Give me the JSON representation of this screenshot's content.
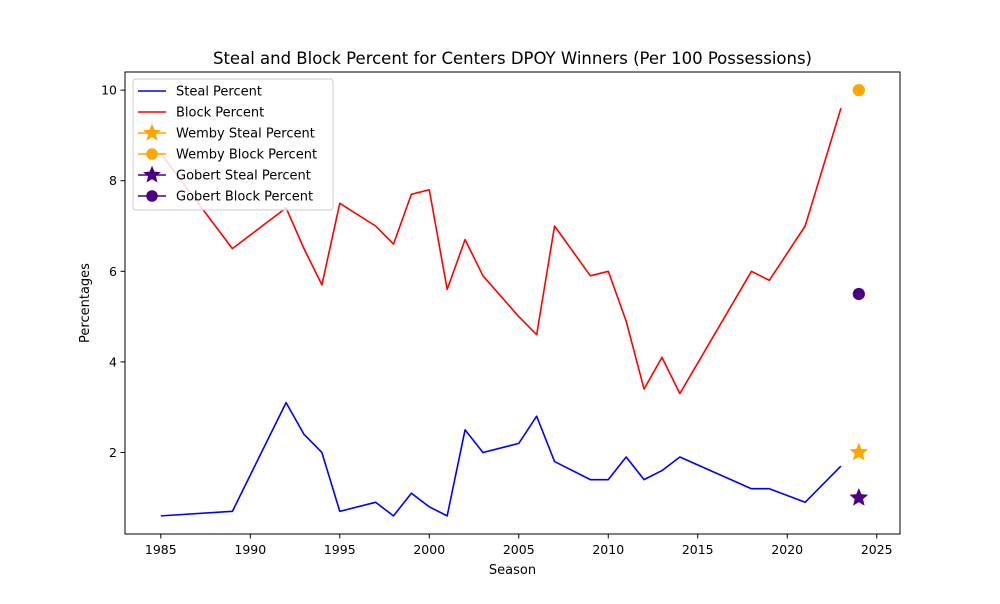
{
  "chart_data": {
    "type": "line",
    "title": "Steal and Block Percent for Centers DPOY Winners (Per 100 Possessions)",
    "xlabel": "Season",
    "ylabel": "Percentages",
    "xlim": [
      1983,
      2026.3
    ],
    "ylim": [
      0.2,
      10.4
    ],
    "xticks": [
      1985,
      1990,
      1995,
      2000,
      2005,
      2010,
      2015,
      2020,
      2025
    ],
    "yticks": [
      2,
      4,
      6,
      8,
      10
    ],
    "legend_position": "upper-left",
    "grid": false,
    "series": [
      {
        "name": "Steal Percent",
        "kind": "line",
        "color": "#0000ff",
        "x": [
          1985,
          1989,
          1992,
          1993,
          1994,
          1995,
          1997,
          1998,
          1999,
          2000,
          2001,
          2002,
          2003,
          2005,
          2006,
          2007,
          2009,
          2010,
          2011,
          2012,
          2013,
          2014,
          2018,
          2019,
          2021,
          2023
        ],
        "y": [
          0.6,
          0.7,
          3.1,
          2.4,
          2.0,
          0.7,
          0.9,
          0.6,
          1.1,
          0.8,
          0.6,
          2.5,
          2.0,
          2.2,
          2.8,
          1.8,
          1.4,
          1.4,
          1.9,
          1.4,
          1.6,
          1.9,
          1.2,
          1.2,
          0.9,
          1.7
        ]
      },
      {
        "name": "Block Percent",
        "kind": "line",
        "color": "#ff0000",
        "x": [
          1985,
          1989,
          1992,
          1993,
          1994,
          1995,
          1997,
          1998,
          1999,
          2000,
          2001,
          2002,
          2003,
          2005,
          2006,
          2007,
          2009,
          2010,
          2011,
          2012,
          2013,
          2014,
          2018,
          2019,
          2021,
          2023
        ],
        "y": [
          8.6,
          6.5,
          7.4,
          6.5,
          5.7,
          7.5,
          7.0,
          6.6,
          7.7,
          7.8,
          5.6,
          6.7,
          5.9,
          5.0,
          4.6,
          7.0,
          5.9,
          6.0,
          4.9,
          3.4,
          4.1,
          3.3,
          6.0,
          5.8,
          7.0,
          9.6
        ]
      },
      {
        "name": "Wemby Steal Percent",
        "kind": "marker",
        "marker": "star",
        "color": "#ffa500",
        "x": [
          2024
        ],
        "y": [
          2.0
        ]
      },
      {
        "name": "Wemby Block Percent",
        "kind": "marker",
        "marker": "circle",
        "color": "#ffa500",
        "x": [
          2024
        ],
        "y": [
          10.0
        ]
      },
      {
        "name": "Gobert Steal Percent",
        "kind": "marker",
        "marker": "star",
        "color": "#4b0082",
        "x": [
          2024
        ],
        "y": [
          1.0
        ]
      },
      {
        "name": "Gobert Block Percent",
        "kind": "marker",
        "marker": "circle",
        "color": "#4b0082",
        "x": [
          2024
        ],
        "y": [
          5.5
        ]
      }
    ]
  }
}
